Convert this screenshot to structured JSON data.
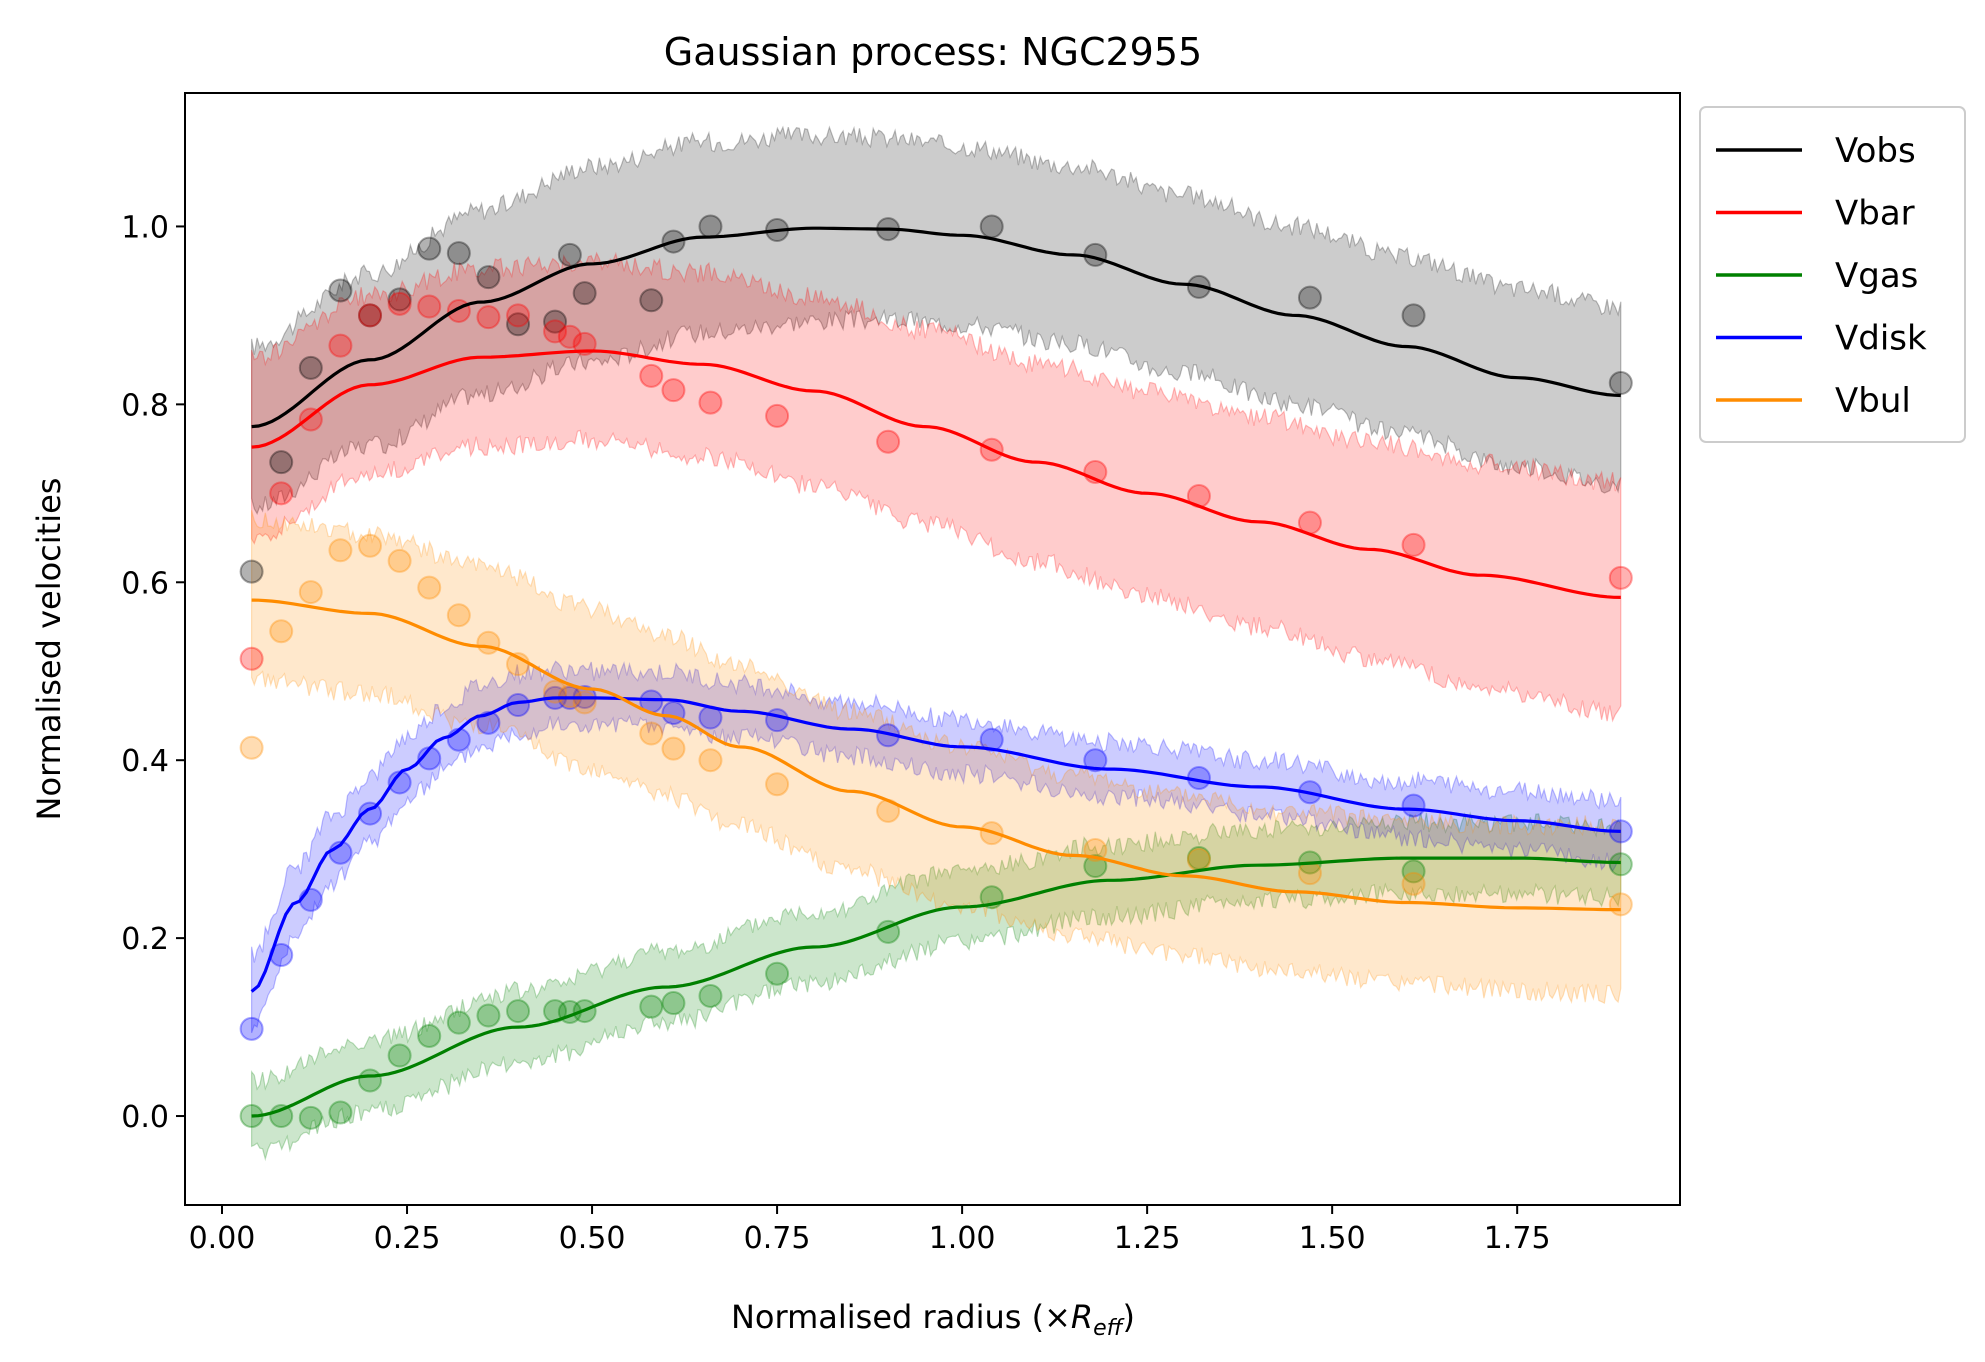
{
  "chart_data": {
    "type": "line",
    "title": "Gaussian process: NGC2955",
    "xlabel": "Normalised radius (×R_eff)",
    "xlabel_parts": {
      "prefix": "Normalised radius (×",
      "symbol": "R",
      "subscript": "eff",
      "suffix": ")"
    },
    "ylabel": "Normalised velocities",
    "xlim": [
      -0.05,
      1.97
    ],
    "ylim": [
      -0.1,
      1.15
    ],
    "xticks": [
      0.0,
      0.25,
      0.5,
      0.75,
      1.0,
      1.25,
      1.5,
      1.75
    ],
    "xtick_labels": [
      "0.00",
      "0.25",
      "0.50",
      "0.75",
      "1.00",
      "1.25",
      "1.50",
      "1.75"
    ],
    "yticks": [
      0.0,
      0.2,
      0.4,
      0.6,
      0.8,
      1.0
    ],
    "ytick_labels": [
      "0.0",
      "0.2",
      "0.4",
      "0.6",
      "0.8",
      "1.0"
    ],
    "grid": false,
    "legend_position": "outside-right-top",
    "series": [
      {
        "name": "Vobs",
        "color": "#000000",
        "points": [
          [
            0.04,
            0.612
          ],
          [
            0.08,
            0.735
          ],
          [
            0.12,
            0.841
          ],
          [
            0.16,
            0.928
          ],
          [
            0.2,
            0.9
          ],
          [
            0.24,
            0.918
          ],
          [
            0.28,
            0.975
          ],
          [
            0.32,
            0.97
          ],
          [
            0.36,
            0.943
          ],
          [
            0.4,
            0.89
          ],
          [
            0.45,
            0.893
          ],
          [
            0.47,
            0.968
          ],
          [
            0.49,
            0.925
          ],
          [
            0.58,
            0.917
          ],
          [
            0.61,
            0.983
          ],
          [
            0.66,
            1.0
          ],
          [
            0.75,
            0.996
          ],
          [
            0.9,
            0.997
          ],
          [
            1.04,
            1.0
          ],
          [
            1.18,
            0.968
          ],
          [
            1.32,
            0.932
          ],
          [
            1.47,
            0.92
          ],
          [
            1.61,
            0.9
          ],
          [
            1.89,
            0.824
          ]
        ],
        "fit": [
          [
            0.04,
            0.775
          ],
          [
            0.2,
            0.85
          ],
          [
            0.35,
            0.915
          ],
          [
            0.5,
            0.958
          ],
          [
            0.65,
            0.988
          ],
          [
            0.8,
            0.998
          ],
          [
            0.9,
            0.997
          ],
          [
            1.0,
            0.99
          ],
          [
            1.15,
            0.968
          ],
          [
            1.3,
            0.935
          ],
          [
            1.45,
            0.9
          ],
          [
            1.6,
            0.865
          ],
          [
            1.75,
            0.83
          ],
          [
            1.89,
            0.81
          ]
        ],
        "band_halfwidth": [
          [
            0.04,
            0.09
          ],
          [
            0.5,
            0.11
          ],
          [
            1.0,
            0.1
          ],
          [
            1.5,
            0.1
          ],
          [
            1.89,
            0.1
          ]
        ]
      },
      {
        "name": "Vbar",
        "color": "#ff0000",
        "points": [
          [
            0.04,
            0.514
          ],
          [
            0.08,
            0.7
          ],
          [
            0.12,
            0.783
          ],
          [
            0.16,
            0.866
          ],
          [
            0.2,
            0.9
          ],
          [
            0.24,
            0.913
          ],
          [
            0.28,
            0.91
          ],
          [
            0.32,
            0.905
          ],
          [
            0.36,
            0.898
          ],
          [
            0.4,
            0.9
          ],
          [
            0.45,
            0.882
          ],
          [
            0.47,
            0.876
          ],
          [
            0.49,
            0.868
          ],
          [
            0.58,
            0.832
          ],
          [
            0.61,
            0.816
          ],
          [
            0.66,
            0.802
          ],
          [
            0.75,
            0.787
          ],
          [
            0.9,
            0.758
          ],
          [
            1.04,
            0.749
          ],
          [
            1.18,
            0.724
          ],
          [
            1.32,
            0.697
          ],
          [
            1.47,
            0.667
          ],
          [
            1.61,
            0.642
          ],
          [
            1.89,
            0.605
          ]
        ],
        "fit": [
          [
            0.04,
            0.752
          ],
          [
            0.2,
            0.822
          ],
          [
            0.35,
            0.853
          ],
          [
            0.5,
            0.86
          ],
          [
            0.65,
            0.845
          ],
          [
            0.8,
            0.815
          ],
          [
            0.95,
            0.775
          ],
          [
            1.1,
            0.735
          ],
          [
            1.25,
            0.7
          ],
          [
            1.4,
            0.668
          ],
          [
            1.55,
            0.637
          ],
          [
            1.7,
            0.608
          ],
          [
            1.89,
            0.583
          ]
        ],
        "band_halfwidth": [
          [
            0.04,
            0.1
          ],
          [
            0.5,
            0.1
          ],
          [
            1.0,
            0.11
          ],
          [
            1.5,
            0.12
          ],
          [
            1.89,
            0.13
          ]
        ]
      },
      {
        "name": "Vgas",
        "color": "#008000",
        "points": [
          [
            0.04,
            0.0
          ],
          [
            0.08,
            0.0
          ],
          [
            0.12,
            -0.002
          ],
          [
            0.16,
            0.004
          ],
          [
            0.2,
            0.04
          ],
          [
            0.24,
            0.068
          ],
          [
            0.28,
            0.09
          ],
          [
            0.32,
            0.105
          ],
          [
            0.36,
            0.113
          ],
          [
            0.4,
            0.118
          ],
          [
            0.45,
            0.118
          ],
          [
            0.47,
            0.117
          ],
          [
            0.49,
            0.118
          ],
          [
            0.58,
            0.123
          ],
          [
            0.61,
            0.127
          ],
          [
            0.66,
            0.135
          ],
          [
            0.75,
            0.16
          ],
          [
            0.9,
            0.207
          ],
          [
            1.04,
            0.246
          ],
          [
            1.18,
            0.281
          ],
          [
            1.32,
            0.29
          ],
          [
            1.47,
            0.285
          ],
          [
            1.61,
            0.275
          ],
          [
            1.89,
            0.283
          ]
        ],
        "fit": [
          [
            0.04,
            0.0
          ],
          [
            0.2,
            0.045
          ],
          [
            0.4,
            0.1
          ],
          [
            0.6,
            0.145
          ],
          [
            0.8,
            0.19
          ],
          [
            1.0,
            0.235
          ],
          [
            1.2,
            0.265
          ],
          [
            1.4,
            0.282
          ],
          [
            1.6,
            0.29
          ],
          [
            1.75,
            0.29
          ],
          [
            1.89,
            0.285
          ]
        ],
        "band_halfwidth": [
          [
            0.04,
            0.04
          ],
          [
            0.5,
            0.04
          ],
          [
            1.0,
            0.04
          ],
          [
            1.5,
            0.04
          ],
          [
            1.89,
            0.04
          ]
        ]
      },
      {
        "name": "Vdisk",
        "color": "#0000ff",
        "points": [
          [
            0.04,
            0.098
          ],
          [
            0.08,
            0.181
          ],
          [
            0.12,
            0.243
          ],
          [
            0.16,
            0.296
          ],
          [
            0.2,
            0.34
          ],
          [
            0.24,
            0.375
          ],
          [
            0.28,
            0.402
          ],
          [
            0.32,
            0.423
          ],
          [
            0.36,
            0.442
          ],
          [
            0.4,
            0.462
          ],
          [
            0.45,
            0.47
          ],
          [
            0.47,
            0.47
          ],
          [
            0.49,
            0.471
          ],
          [
            0.58,
            0.466
          ],
          [
            0.61,
            0.453
          ],
          [
            0.66,
            0.448
          ],
          [
            0.75,
            0.445
          ],
          [
            0.9,
            0.428
          ],
          [
            1.04,
            0.423
          ],
          [
            1.18,
            0.4
          ],
          [
            1.32,
            0.38
          ],
          [
            1.47,
            0.364
          ],
          [
            1.61,
            0.349
          ],
          [
            1.89,
            0.32
          ]
        ],
        "fit": [
          [
            0.04,
            0.14
          ],
          [
            0.1,
            0.24
          ],
          [
            0.15,
            0.3
          ],
          [
            0.2,
            0.345
          ],
          [
            0.25,
            0.39
          ],
          [
            0.3,
            0.425
          ],
          [
            0.35,
            0.45
          ],
          [
            0.4,
            0.465
          ],
          [
            0.45,
            0.47
          ],
          [
            0.5,
            0.47
          ],
          [
            0.6,
            0.468
          ],
          [
            0.7,
            0.455
          ],
          [
            0.85,
            0.435
          ],
          [
            1.0,
            0.415
          ],
          [
            1.2,
            0.39
          ],
          [
            1.4,
            0.37
          ],
          [
            1.6,
            0.345
          ],
          [
            1.75,
            0.332
          ],
          [
            1.89,
            0.32
          ]
        ],
        "band_halfwidth": [
          [
            0.04,
            0.04
          ],
          [
            0.5,
            0.03
          ],
          [
            1.0,
            0.03
          ],
          [
            1.5,
            0.03
          ],
          [
            1.89,
            0.035
          ]
        ]
      },
      {
        "name": "Vbul",
        "color": "#ff8c00",
        "points": [
          [
            0.04,
            0.414
          ],
          [
            0.08,
            0.545
          ],
          [
            0.12,
            0.589
          ],
          [
            0.16,
            0.636
          ],
          [
            0.2,
            0.641
          ],
          [
            0.24,
            0.624
          ],
          [
            0.28,
            0.594
          ],
          [
            0.32,
            0.563
          ],
          [
            0.36,
            0.532
          ],
          [
            0.4,
            0.508
          ],
          [
            0.45,
            0.477
          ],
          [
            0.47,
            0.472
          ],
          [
            0.49,
            0.465
          ],
          [
            0.58,
            0.43
          ],
          [
            0.61,
            0.413
          ],
          [
            0.66,
            0.4
          ],
          [
            0.75,
            0.373
          ],
          [
            0.9,
            0.343
          ],
          [
            1.04,
            0.318
          ],
          [
            1.18,
            0.299
          ],
          [
            1.32,
            0.288
          ],
          [
            1.47,
            0.273
          ],
          [
            1.61,
            0.261
          ],
          [
            1.89,
            0.238
          ]
        ],
        "fit": [
          [
            0.04,
            0.58
          ],
          [
            0.2,
            0.565
          ],
          [
            0.35,
            0.528
          ],
          [
            0.5,
            0.48
          ],
          [
            0.6,
            0.45
          ],
          [
            0.7,
            0.415
          ],
          [
            0.85,
            0.365
          ],
          [
            1.0,
            0.325
          ],
          [
            1.15,
            0.293
          ],
          [
            1.3,
            0.27
          ],
          [
            1.45,
            0.252
          ],
          [
            1.6,
            0.24
          ],
          [
            1.75,
            0.234
          ],
          [
            1.89,
            0.232
          ]
        ],
        "band_halfwidth": [
          [
            0.04,
            0.09
          ],
          [
            0.5,
            0.09
          ],
          [
            1.0,
            0.09
          ],
          [
            1.5,
            0.09
          ],
          [
            1.89,
            0.095
          ]
        ]
      }
    ]
  }
}
